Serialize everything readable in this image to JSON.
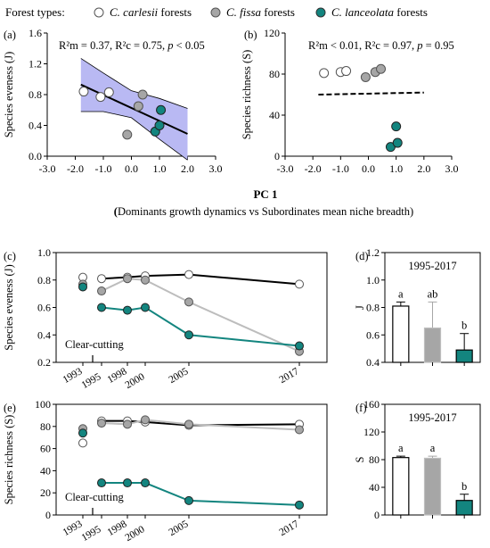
{
  "legend": {
    "title": "Forest types:",
    "entries": [
      {
        "species": "C. carlesii",
        "suffix": " forests",
        "color": "#ffffff"
      },
      {
        "species": "C. fissa",
        "suffix": " forests",
        "color": "#a6a6a6"
      },
      {
        "species": "C. lanceolata",
        "suffix": " forests",
        "color": "#13857f"
      }
    ]
  },
  "pc_label": "PC 1",
  "pc_sublabel_bold": "(",
  "pc_sublabel": "Dominants growth dynamics vs Subordinates mean niche breadth)",
  "colors": {
    "carlesii": "#ffffff",
    "fissa": "#a6a6a6",
    "lanceolata": "#13857f",
    "band": "#b9b9f3"
  },
  "chart_data": [
    {
      "id": "a",
      "panel_label": "(a)",
      "type": "scatter",
      "ylabel": "Species eveness (J)",
      "xlim": [
        -3,
        3
      ],
      "ylim": [
        0,
        1.6
      ],
      "xticks": [
        "-3.0",
        "-2.0",
        "-1.0",
        "0.0",
        "1.0",
        "2.0",
        "3.0"
      ],
      "yticks": [
        "0.0",
        "0.4",
        "0.8",
        "1.2",
        "1.6"
      ],
      "stats": {
        "r2m": "R²m = 0.37",
        "r2c": "R²c = 0.75",
        "p": "p < 0.05"
      },
      "series": [
        {
          "name": "C. carlesii",
          "x": [
            -1.7,
            -1.1,
            -0.8
          ],
          "y": [
            0.84,
            0.77,
            0.83
          ]
        },
        {
          "name": "C. fissa",
          "x": [
            -0.15,
            0.25,
            0.4
          ],
          "y": [
            0.28,
            0.65,
            0.8
          ]
        },
        {
          "name": "C. lanceolata",
          "x": [
            0.85,
            1.0,
            1.05
          ],
          "y": [
            0.32,
            0.4,
            0.6
          ]
        }
      ],
      "fit": {
        "x": [
          -1.8,
          2.0
        ],
        "y": [
          0.93,
          0.29
        ]
      },
      "band_upper": {
        "x": [
          -1.8,
          -1.0,
          0.0,
          1.0,
          2.0
        ],
        "y": [
          1.27,
          1.08,
          0.85,
          0.75,
          0.62
        ]
      },
      "band_lower": {
        "x": [
          -1.8,
          -1.0,
          0.0,
          1.0,
          2.0
        ],
        "y": [
          0.58,
          0.58,
          0.5,
          0.22,
          -0.05
        ]
      }
    },
    {
      "id": "b",
      "panel_label": "(b)",
      "type": "scatter",
      "ylabel": "Species richness (S)",
      "xlim": [
        -3,
        3
      ],
      "ylim": [
        0,
        120
      ],
      "xticks": [
        "-3.0",
        "-2.0",
        "-1.0",
        "0.0",
        "1.0",
        "2.0",
        "3.0"
      ],
      "yticks": [
        "0",
        "40",
        "80",
        "120"
      ],
      "stats": {
        "r2m": "R²m < 0.01",
        "r2c": "R²c = 0.97",
        "p": "p = 0.95"
      },
      "series": [
        {
          "name": "C. carlesii",
          "x": [
            -1.6,
            -1.0,
            -0.8
          ],
          "y": [
            81,
            82,
            83
          ]
        },
        {
          "name": "C. fissa",
          "x": [
            -0.1,
            0.25,
            0.45
          ],
          "y": [
            77,
            82,
            85
          ]
        },
        {
          "name": "C. lanceolata",
          "x": [
            0.8,
            1.05,
            1.0
          ],
          "y": [
            9,
            13,
            29
          ]
        }
      ],
      "fit": {
        "x": [
          -1.8,
          2.0
        ],
        "y": [
          60,
          62
        ]
      }
    },
    {
      "id": "c",
      "panel_label": "(c)",
      "type": "line",
      "ylabel": "Species eveness (J)",
      "ylim": [
        0.2,
        1.0
      ],
      "yticks": [
        "0.2",
        "0.4",
        "0.6",
        "0.8",
        "1.0"
      ],
      "x_years": [
        1993,
        1995,
        1998,
        2000,
        2005,
        2017
      ],
      "xtick_labels": [
        "1993",
        "1995",
        "1998",
        "2000",
        "2005",
        "2017"
      ],
      "annotation": "Clear-cutting",
      "series": [
        {
          "name": "C. carlesii",
          "x": [
            1995,
            1998,
            2000,
            2005,
            2017
          ],
          "y": [
            0.81,
            0.82,
            0.83,
            0.84,
            0.77
          ]
        },
        {
          "name": "C. fissa",
          "x": [
            1995,
            1998,
            2000,
            2005,
            2017
          ],
          "y": [
            0.72,
            0.81,
            0.8,
            0.64,
            0.28
          ]
        },
        {
          "name": "C. lanceolata",
          "x": [
            1995,
            1998,
            2000,
            2005,
            2017
          ],
          "y": [
            0.6,
            0.58,
            0.6,
            0.4,
            0.32
          ]
        }
      ],
      "baseline_1993": [
        {
          "name": "C. carlesii",
          "y": [
            0.82
          ]
        },
        {
          "name": "C. fissa",
          "y": [
            0.77
          ]
        },
        {
          "name": "C. lanceolata",
          "y": [
            0.75
          ]
        }
      ]
    },
    {
      "id": "d",
      "panel_label": "(d)",
      "type": "bar",
      "title": "1995-2017",
      "ylabel": "J",
      "ylim": [
        0.4,
        1.2
      ],
      "yticks": [
        "0.4",
        "0.6",
        "0.8",
        "1.0",
        "1.2"
      ],
      "categories": [
        "C. carlesii",
        "C. fissa",
        "C. lanceolata"
      ],
      "values": [
        0.81,
        0.65,
        0.49
      ],
      "errors": [
        0.03,
        0.19,
        0.12
      ],
      "letters": [
        "a",
        "ab",
        "b"
      ]
    },
    {
      "id": "e",
      "panel_label": "(e)",
      "type": "line",
      "ylabel": "Species richness (S)",
      "ylim": [
        0,
        100
      ],
      "yticks": [
        "0",
        "20",
        "40",
        "60",
        "80",
        "100"
      ],
      "x_years": [
        1993,
        1995,
        1998,
        2000,
        2005,
        2017
      ],
      "xtick_labels": [
        "1993",
        "1995",
        "1998",
        "2000",
        "2005",
        "2017"
      ],
      "annotation": "Clear-cutting",
      "series": [
        {
          "name": "C. carlesii",
          "x": [
            1995,
            1998,
            2000,
            2005,
            2017
          ],
          "y": [
            85,
            85,
            84,
            81,
            82
          ]
        },
        {
          "name": "C. fissa",
          "x": [
            1995,
            1998,
            2000,
            2005,
            2017
          ],
          "y": [
            83,
            82,
            86,
            82,
            77
          ]
        },
        {
          "name": "C. lanceolata",
          "x": [
            1995,
            1998,
            2000,
            2005,
            2017
          ],
          "y": [
            29,
            29,
            29,
            13,
            9
          ]
        }
      ],
      "baseline_1993": [
        {
          "name": "C. carlesii",
          "y": [
            65
          ]
        },
        {
          "name": "C. fissa",
          "y": [
            78
          ]
        },
        {
          "name": "C. lanceolata",
          "y": [
            74
          ]
        }
      ]
    },
    {
      "id": "f",
      "panel_label": "(f)",
      "type": "bar",
      "title": "1995-2017",
      "ylabel": "S",
      "ylim": [
        0,
        160
      ],
      "yticks": [
        "0",
        "40",
        "80",
        "120",
        "160"
      ],
      "categories": [
        "C. carlesii",
        "C. fissa",
        "C. lanceolata"
      ],
      "values": [
        83,
        82,
        21
      ],
      "errors": [
        2,
        3,
        9
      ],
      "letters": [
        "a",
        "a",
        "b"
      ]
    }
  ]
}
